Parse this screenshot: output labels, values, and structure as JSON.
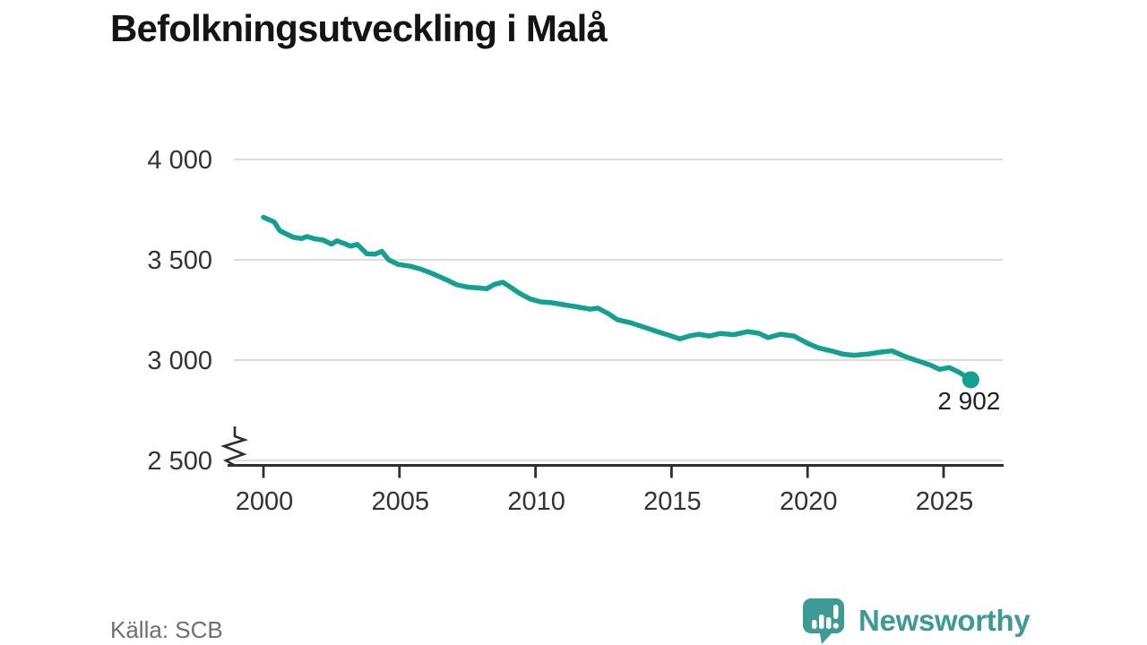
{
  "title": "Befolkningsutveckling i Malå",
  "footer": {
    "source": "Källa: SCB",
    "brand_name": "Newsworthy"
  },
  "colors": {
    "background": "#ffffff",
    "line": "#14a091",
    "grid": "#dcdcdc",
    "axis": "#2e2e2e",
    "tick_text": "#333333",
    "title_text": "#141414",
    "source_text": "#6f6f6f",
    "brand": "#3e9a94",
    "end_label_text": "#1f1f1f"
  },
  "chart_data": {
    "type": "line",
    "title": "Befolkningsutveckling i Malå",
    "xlabel": "",
    "ylabel": "",
    "grid": "horizontal",
    "legend": "none",
    "y_axis_break": true,
    "xlim": [
      2000,
      2027.2
    ],
    "ylim": [
      2500,
      4000
    ],
    "x_ticks": {
      "values": [
        2000,
        2005,
        2010,
        2015,
        2020,
        2025
      ],
      "labels": [
        "2000",
        "2005",
        "2010",
        "2015",
        "2020",
        "2025"
      ]
    },
    "y_ticks": {
      "values": [
        2500,
        3000,
        3500,
        4000
      ],
      "labels": [
        "2 500",
        "3 000",
        "3 500",
        "4 000"
      ]
    },
    "series": [
      {
        "name": "Befolkning i Malå",
        "color": "#14a091",
        "points": [
          [
            2000.0,
            3712
          ],
          [
            2000.2,
            3700
          ],
          [
            2000.4,
            3688
          ],
          [
            2000.6,
            3645
          ],
          [
            2000.9,
            3625
          ],
          [
            2001.1,
            3612
          ],
          [
            2001.4,
            3606
          ],
          [
            2001.6,
            3616
          ],
          [
            2001.9,
            3604
          ],
          [
            2002.2,
            3598
          ],
          [
            2002.5,
            3578
          ],
          [
            2002.7,
            3594
          ],
          [
            2003.0,
            3580
          ],
          [
            2003.2,
            3568
          ],
          [
            2003.45,
            3577
          ],
          [
            2003.8,
            3530
          ],
          [
            2004.1,
            3528
          ],
          [
            2004.35,
            3542
          ],
          [
            2004.6,
            3500
          ],
          [
            2004.95,
            3477
          ],
          [
            2005.4,
            3468
          ],
          [
            2005.75,
            3455
          ],
          [
            2006.2,
            3432
          ],
          [
            2006.5,
            3414
          ],
          [
            2006.8,
            3396
          ],
          [
            2007.1,
            3376
          ],
          [
            2007.5,
            3364
          ],
          [
            2007.9,
            3360
          ],
          [
            2008.2,
            3356
          ],
          [
            2008.5,
            3378
          ],
          [
            2008.8,
            3388
          ],
          [
            2009.05,
            3366
          ],
          [
            2009.4,
            3334
          ],
          [
            2009.8,
            3305
          ],
          [
            2010.2,
            3290
          ],
          [
            2010.6,
            3286
          ],
          [
            2011.0,
            3277
          ],
          [
            2011.5,
            3266
          ],
          [
            2012.0,
            3254
          ],
          [
            2012.3,
            3259
          ],
          [
            2012.7,
            3230
          ],
          [
            2013.0,
            3202
          ],
          [
            2013.5,
            3186
          ],
          [
            2014.0,
            3164
          ],
          [
            2014.5,
            3141
          ],
          [
            2015.0,
            3120
          ],
          [
            2015.3,
            3106
          ],
          [
            2015.65,
            3120
          ],
          [
            2016.0,
            3129
          ],
          [
            2016.4,
            3120
          ],
          [
            2016.8,
            3133
          ],
          [
            2017.3,
            3127
          ],
          [
            2017.8,
            3142
          ],
          [
            2018.2,
            3134
          ],
          [
            2018.55,
            3112
          ],
          [
            2019.0,
            3129
          ],
          [
            2019.5,
            3120
          ],
          [
            2020.0,
            3084
          ],
          [
            2020.4,
            3061
          ],
          [
            2020.9,
            3045
          ],
          [
            2021.3,
            3030
          ],
          [
            2021.7,
            3024
          ],
          [
            2022.2,
            3030
          ],
          [
            2022.7,
            3040
          ],
          [
            2023.1,
            3046
          ],
          [
            2023.6,
            3017
          ],
          [
            2024.1,
            2994
          ],
          [
            2024.5,
            2976
          ],
          [
            2024.85,
            2954
          ],
          [
            2025.2,
            2963
          ],
          [
            2025.55,
            2941
          ],
          [
            2026.0,
            2902
          ]
        ]
      }
    ],
    "end_label": "2 902",
    "end_value": 2902
  }
}
